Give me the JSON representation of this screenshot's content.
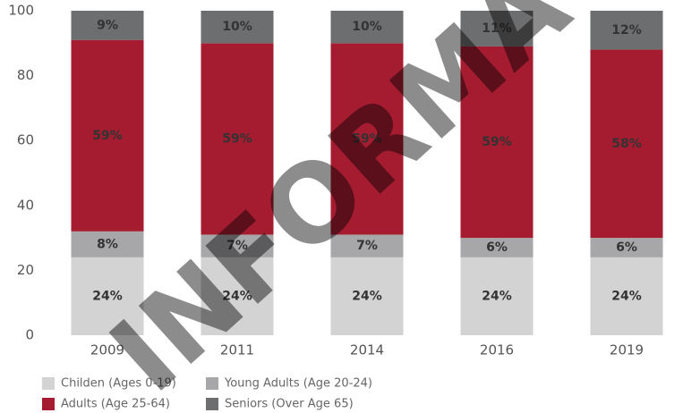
{
  "chart_data": {
    "type": "stacked_bar",
    "categories": [
      "2009",
      "2011",
      "2014",
      "2016",
      "2019"
    ],
    "series": [
      {
        "name": "Childen (Ages 0-19)",
        "color": "#d3d3d4",
        "values": [
          24,
          24,
          24,
          24,
          24
        ],
        "value_labels": [
          "24%",
          "24%",
          "24%",
          "24%",
          "24%"
        ]
      },
      {
        "name": "Young Adults (Age 20-24)",
        "color": "#a7a7a9",
        "values": [
          8,
          7,
          7,
          6,
          6
        ],
        "value_labels": [
          "8%",
          "7%",
          "7%",
          "6%",
          "6%"
        ]
      },
      {
        "name": "Adults (Age 25-64)",
        "color": "#a51c30",
        "values": [
          59,
          59,
          59,
          59,
          58
        ],
        "value_labels": [
          "59%",
          "59%",
          "59%",
          "59%",
          "58%"
        ]
      },
      {
        "name": "Seniors (Over Age 65)",
        "color": "#6d6e70",
        "values": [
          9,
          10,
          10,
          11,
          12
        ],
        "value_labels": [
          "9%",
          "10%",
          "10%",
          "11%",
          "12%"
        ]
      }
    ],
    "ylim": [
      0,
      100
    ],
    "yticks": [
      0,
      20,
      40,
      60,
      80,
      100
    ],
    "grid": false,
    "watermark": "INFORMA"
  }
}
